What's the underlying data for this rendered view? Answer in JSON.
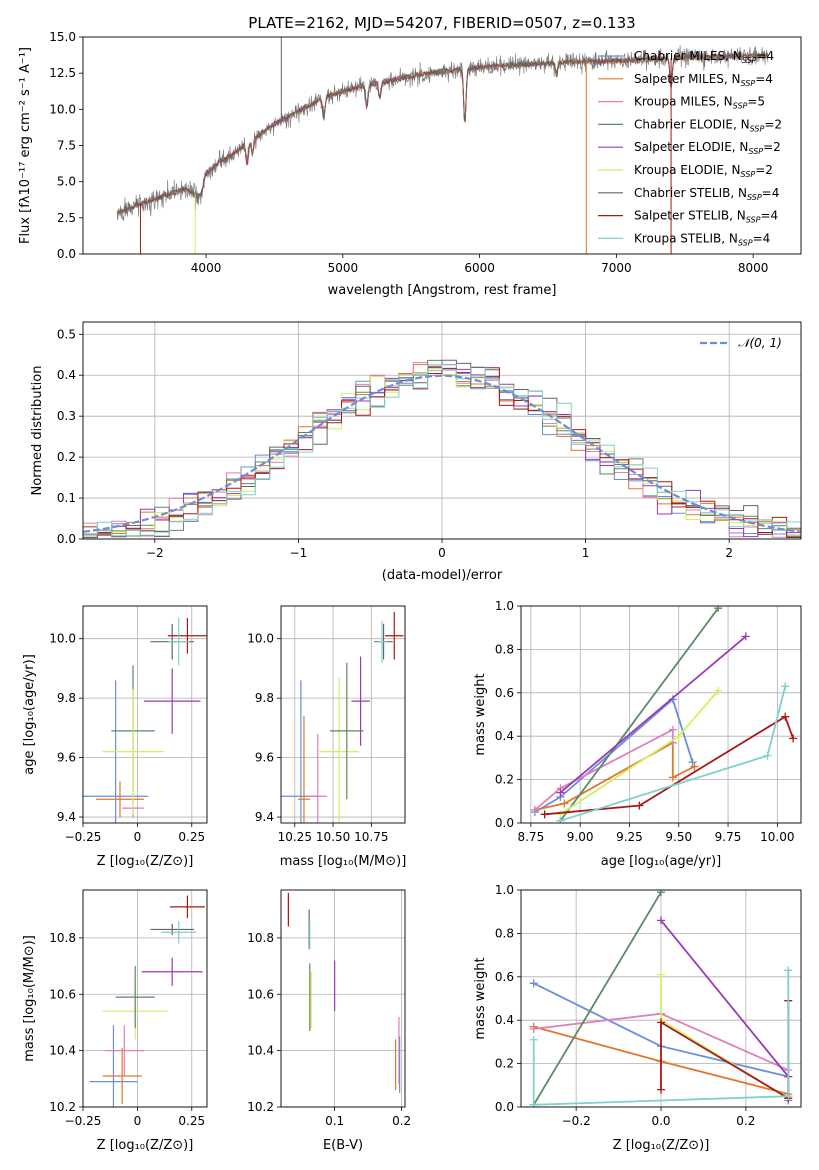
{
  "colors": {
    "cornflower": "#6A8FD8",
    "orange": "#E0782A",
    "pink": "#E07FB8",
    "green": "#5B8A66",
    "purple": "#9A3AB8",
    "lime": "#D4EE64",
    "gray": "#666666",
    "darkred": "#A81818",
    "cyan": "#7FD0CE"
  },
  "chart_data": [
    {
      "id": "spectrum",
      "type": "line",
      "title": "PLATE=2162, MJD=54207, FIBERID=0507, z=0.133",
      "xlabel": "wavelength [Angstrom, rest frame]",
      "ylabel": "Flux [fλ10⁻¹⁷ erg cm⁻² s⁻¹ A⁻¹]",
      "xlim": [
        3100,
        8350
      ],
      "ylim": [
        0,
        15
      ],
      "xticks": [
        4000,
        5000,
        6000,
        7000,
        8000
      ],
      "yticks": [
        0.0,
        2.5,
        5.0,
        7.5,
        10.0,
        12.5,
        15.0
      ],
      "grid": false,
      "legend_position": "right",
      "legend": [
        {
          "label": "Chabrier MILES, N",
          "sub": "SSP",
          "suffix": "=4",
          "color": "#6A8FD8"
        },
        {
          "label": "Salpeter MILES, N",
          "sub": "SSP",
          "suffix": "=4",
          "color": "#E0782A"
        },
        {
          "label": "Kroupa MILES, N",
          "sub": "SSP",
          "suffix": "=5",
          "color": "#E07FB8"
        },
        {
          "label": "Chabrier ELODIE, N",
          "sub": "SSP",
          "suffix": "=2",
          "color": "#5B8A66"
        },
        {
          "label": "Salpeter ELODIE, N",
          "sub": "SSP",
          "suffix": "=2",
          "color": "#9A3AB8"
        },
        {
          "label": "Kroupa ELODIE, N",
          "sub": "SSP",
          "suffix": "=2",
          "color": "#D4EE64"
        },
        {
          "label": "Chabrier STELIB, N",
          "sub": "SSP",
          "suffix": "=4",
          "color": "#666666"
        },
        {
          "label": "Salpeter STELIB, N",
          "sub": "SSP",
          "suffix": "=4",
          "color": "#A81818"
        },
        {
          "label": "Kroupa STELIB, N",
          "sub": "SSP",
          "suffix": "=4",
          "color": "#7FD0CE"
        }
      ],
      "continuum": [
        [
          3350,
          2.8
        ],
        [
          3500,
          3.4
        ],
        [
          3650,
          3.9
        ],
        [
          3750,
          4.2
        ],
        [
          3850,
          4.5
        ],
        [
          3950,
          4.0
        ],
        [
          4000,
          5.6
        ],
        [
          4100,
          6.3
        ],
        [
          4300,
          7.6
        ],
        [
          4500,
          9.0
        ],
        [
          4700,
          10.0
        ],
        [
          4900,
          11.0
        ],
        [
          5100,
          11.5
        ],
        [
          5300,
          11.9
        ],
        [
          5500,
          12.3
        ],
        [
          5700,
          12.6
        ],
        [
          5900,
          12.8
        ],
        [
          6100,
          13.0
        ],
        [
          6300,
          13.1
        ],
        [
          6500,
          13.2
        ],
        [
          6700,
          13.3
        ],
        [
          6900,
          13.3
        ],
        [
          7100,
          13.4
        ],
        [
          7300,
          13.5
        ],
        [
          7500,
          13.6
        ],
        [
          7700,
          13.6
        ],
        [
          7900,
          13.7
        ],
        [
          8100,
          13.7
        ]
      ],
      "absorption_features": [
        [
          3934,
          4.0
        ],
        [
          3969,
          4.3
        ],
        [
          4101,
          6.5
        ],
        [
          4300,
          6.2
        ],
        [
          4340,
          7.0
        ],
        [
          4861,
          9.4
        ],
        [
          5175,
          10.2
        ],
        [
          5270,
          10.8
        ],
        [
          5892,
          9.0
        ],
        [
          6563,
          12.4
        ],
        [
          7400,
          11.5
        ]
      ],
      "spikes": [
        [
          3520,
          0
        ],
        [
          3920,
          0
        ],
        [
          4550,
          15
        ],
        [
          6780,
          0
        ],
        [
          7400,
          0
        ]
      ]
    },
    {
      "id": "residuals",
      "type": "bar",
      "xlabel": "(data-model)/error",
      "ylabel": "Normed distribution",
      "xlim": [
        -2.5,
        2.5
      ],
      "ylim": [
        0,
        0.53
      ],
      "xticks": [
        -2,
        -1,
        0,
        1,
        2
      ],
      "yticks": [
        0.0,
        0.1,
        0.2,
        0.3,
        0.4,
        0.5
      ],
      "grid": true,
      "legend_position": "top-right",
      "reference_curve": {
        "label": "𝒩(0, 1)",
        "mean": 0,
        "sigma": 1,
        "color": "#6A8FD8"
      },
      "bin_width": 0.1,
      "bin_start": -2.5
    },
    {
      "id": "age_vs_Z",
      "type": "scatter",
      "xlabel": "Z [log₁₀(Z/Z⊙)]",
      "ylabel": "age  [log₁₀(age/yr)]",
      "xlim": [
        -0.25,
        0.32
      ],
      "ylim": [
        9.38,
        10.11
      ],
      "xticks": [
        -0.25,
        0.0,
        0.25
      ],
      "yticks": [
        9.4,
        9.6,
        9.8,
        10.0
      ],
      "grid": true,
      "points": [
        {
          "color": "#6A8FD8",
          "x": -0.1,
          "xerr": 0.15,
          "y": 9.47,
          "yerr": 0.39
        },
        {
          "color": "#E0782A",
          "x": -0.08,
          "xerr": 0.11,
          "y": 9.46,
          "yerr": 0.06
        },
        {
          "color": "#E07FB8",
          "x": -0.02,
          "xerr": 0.05,
          "y": 9.43,
          "yerr": 0.03
        },
        {
          "color": "#5B8A66",
          "x": -0.02,
          "xerr": 0.1,
          "y": 9.69,
          "yerr": 0.22
        },
        {
          "color": "#D4EE64",
          "x": -0.02,
          "xerr": 0.14,
          "y": 9.62,
          "yerr": 0.21
        },
        {
          "color": "#9A3AB8",
          "x": 0.16,
          "xerr": 0.13,
          "y": 9.79,
          "yerr": 0.11
        },
        {
          "color": "#666666",
          "x": 0.16,
          "xerr": 0.1,
          "y": 9.99,
          "yerr": 0.06
        },
        {
          "color": "#A81818",
          "x": 0.23,
          "xerr": 0.09,
          "y": 10.01,
          "yerr": 0.06
        },
        {
          "color": "#7FD0CE",
          "x": 0.19,
          "xerr": 0.05,
          "y": 9.99,
          "yerr": 0.08
        }
      ]
    },
    {
      "id": "age_vs_mass",
      "type": "scatter",
      "xlabel": "mass [log₁₀(M/M⊙)]",
      "ylabel": "",
      "xlim": [
        10.16,
        10.97
      ],
      "ylim": [
        9.38,
        10.11
      ],
      "xticks": [
        10.25,
        10.5,
        10.75
      ],
      "xtick_labels": [
        "10.25",
        "10.50",
        "10.75"
      ],
      "yticks": [
        9.4,
        9.6,
        9.8,
        10.0
      ],
      "grid": true,
      "points": [
        {
          "color": "#6A8FD8",
          "x": 10.29,
          "xerr": 0.13,
          "y": 9.47,
          "yerr": 0.39
        },
        {
          "color": "#E0782A",
          "x": 10.31,
          "xerr": 0.04,
          "y": 9.46,
          "yerr": 0.28
        },
        {
          "color": "#E07FB8",
          "x": 10.4,
          "xerr": 0.06,
          "y": 9.47,
          "yerr": 0.21
        },
        {
          "color": "#D4EE64",
          "x": 10.54,
          "xerr": 0.13,
          "y": 9.62,
          "yerr": 0.25
        },
        {
          "color": "#5B8A66",
          "x": 10.59,
          "xerr": 0.11,
          "y": 9.69,
          "yerr": 0.23
        },
        {
          "color": "#9A3AB8",
          "x": 10.68,
          "xerr": 0.06,
          "y": 9.79,
          "yerr": 0.15
        },
        {
          "color": "#666666",
          "x": 10.83,
          "xerr": 0.06,
          "y": 9.99,
          "yerr": 0.06
        },
        {
          "color": "#A81818",
          "x": 10.9,
          "xerr": 0.06,
          "y": 10.01,
          "yerr": 0.08
        },
        {
          "color": "#7FD0CE",
          "x": 10.82,
          "xerr": 0.03,
          "y": 9.99,
          "yerr": 0.07
        }
      ]
    },
    {
      "id": "massweight_vs_age",
      "type": "line",
      "xlabel": "age  [log₁₀(age/yr)]",
      "ylabel": "mass weight",
      "xlim": [
        8.7,
        10.12
      ],
      "ylim": [
        0,
        1
      ],
      "xticks": [
        8.75,
        9.0,
        9.25,
        9.5,
        9.75,
        10.0
      ],
      "xtick_labels": [
        "8.75",
        "9.00",
        "9.25",
        "9.50",
        "9.75",
        "10.00"
      ],
      "yticks": [
        0.0,
        0.2,
        0.4,
        0.6,
        0.8,
        1.0
      ],
      "grid": true,
      "series": [
        {
          "color": "#6A8FD8",
          "points": [
            [
              8.77,
              0.05
            ],
            [
              8.9,
              0.12
            ],
            [
              9.47,
              0.57
            ],
            [
              9.57,
              0.28
            ]
          ]
        },
        {
          "color": "#E0782A",
          "points": [
            [
              8.77,
              0.06
            ],
            [
              8.92,
              0.09
            ],
            [
              9.47,
              0.37
            ],
            [
              9.47,
              0.21
            ],
            [
              9.58,
              0.26
            ]
          ]
        },
        {
          "color": "#E07FB8",
          "points": [
            [
              8.77,
              0.06
            ],
            [
              8.9,
              0.16
            ],
            [
              9.47,
              0.43
            ],
            [
              9.47,
              0.37
            ]
          ]
        },
        {
          "color": "#5B8A66",
          "points": [
            [
              8.9,
              0.01
            ],
            [
              9.7,
              0.99
            ]
          ]
        },
        {
          "color": "#9A3AB8",
          "points": [
            [
              8.9,
              0.14
            ],
            [
              9.84,
              0.86
            ]
          ]
        },
        {
          "color": "#D4EE64",
          "points": [
            [
              8.9,
              0.04
            ],
            [
              9.5,
              0.4
            ],
            [
              9.7,
              0.61
            ]
          ]
        },
        {
          "color": "#A81818",
          "points": [
            [
              8.82,
              0.04
            ],
            [
              9.3,
              0.08
            ],
            [
              10.04,
              0.49
            ],
            [
              10.08,
              0.39
            ]
          ]
        },
        {
          "color": "#7FD0CE",
          "points": [
            [
              8.9,
              0.01
            ],
            [
              9.95,
              0.31
            ],
            [
              10.04,
              0.63
            ]
          ]
        }
      ]
    },
    {
      "id": "mass_vs_Z",
      "type": "scatter",
      "xlabel": "Z [log₁₀(Z/Z⊙)]",
      "ylabel": "mass [log₁₀(M/M⊙)]",
      "xlim": [
        -0.25,
        0.32
      ],
      "ylim": [
        10.2,
        10.97
      ],
      "xticks": [
        -0.25,
        0.0,
        0.25
      ],
      "yticks": [
        10.2,
        10.4,
        10.6,
        10.8
      ],
      "grid": true,
      "points": [
        {
          "color": "#6A8FD8",
          "x": -0.11,
          "xerr": 0.11,
          "y": 10.29,
          "yerr": 0.2
        },
        {
          "color": "#E0782A",
          "x": -0.07,
          "xerr": 0.09,
          "y": 10.31,
          "yerr": 0.1
        },
        {
          "color": "#E07FB8",
          "x": -0.06,
          "xerr": 0.09,
          "y": 10.4,
          "yerr": 0.09
        },
        {
          "color": "#D4EE64",
          "x": -0.01,
          "xerr": 0.15,
          "y": 10.54,
          "yerr": 0.1
        },
        {
          "color": "#5B8A66",
          "x": -0.01,
          "xerr": 0.09,
          "y": 10.59,
          "yerr": 0.11
        },
        {
          "color": "#9A3AB8",
          "x": 0.16,
          "xerr": 0.14,
          "y": 10.68,
          "yerr": 0.05
        },
        {
          "color": "#666666",
          "x": 0.16,
          "xerr": 0.1,
          "y": 10.83,
          "yerr": 0.02
        },
        {
          "color": "#A81818",
          "x": 0.23,
          "xerr": 0.08,
          "y": 10.91,
          "yerr": 0.04
        },
        {
          "color": "#7FD0CE",
          "x": 0.19,
          "xerr": 0.08,
          "y": 10.82,
          "yerr": 0.04
        }
      ]
    },
    {
      "id": "mass_vs_ebv",
      "type": "scatter",
      "xlabel": "E(B-V)",
      "ylabel": "",
      "xlim": [
        0.02,
        0.205
      ],
      "ylim": [
        10.2,
        10.97
      ],
      "xticks": [
        0.1,
        0.2
      ],
      "yticks": [
        10.2,
        10.4,
        10.6,
        10.8
      ],
      "grid": true,
      "points": [
        {
          "color": "#A81818",
          "x": 0.031,
          "xerr": 0,
          "y": 10.9,
          "yerr": 0.06
        },
        {
          "color": "#666666",
          "x": 0.062,
          "xerr": 0,
          "y": 10.83,
          "yerr": 0.07
        },
        {
          "color": "#7FD0CE",
          "x": 0.063,
          "xerr": 0,
          "y": 10.81,
          "yerr": 0.05
        },
        {
          "color": "#5B8A66",
          "x": 0.063,
          "xerr": 0,
          "y": 10.59,
          "yerr": 0.12
        },
        {
          "color": "#D4EE64",
          "x": 0.065,
          "xerr": 0,
          "y": 10.58,
          "yerr": 0.1
        },
        {
          "color": "#9A3AB8",
          "x": 0.1,
          "xerr": 0,
          "y": 10.63,
          "yerr": 0.09
        },
        {
          "color": "#E0782A",
          "x": 0.191,
          "xerr": 0,
          "y": 10.35,
          "yerr": 0.09
        },
        {
          "color": "#E07FB8",
          "x": 0.196,
          "xerr": 0,
          "y": 10.4,
          "yerr": 0.12
        },
        {
          "color": "#6A8FD8",
          "x": 0.197,
          "xerr": 0,
          "y": 10.35,
          "yerr": 0.1
        }
      ]
    },
    {
      "id": "massweight_vs_Z",
      "type": "line",
      "xlabel": "Z [log₁₀(Z/Z⊙)]",
      "ylabel": "mass weight",
      "xlim": [
        -0.33,
        0.33
      ],
      "ylim": [
        0,
        1
      ],
      "xticks": [
        -0.2,
        0.0,
        0.2
      ],
      "xtick_labels": [
        "−0.2",
        "0.0",
        "0.2"
      ],
      "yticks": [
        0.0,
        0.2,
        0.4,
        0.6,
        0.8,
        1.0
      ],
      "grid": true,
      "series": [
        {
          "color": "#6A8FD8",
          "points": [
            [
              -0.3,
              0.57
            ],
            [
              0.0,
              0.28
            ],
            [
              0.3,
              0.14
            ],
            [
              0.3,
              0.03
            ]
          ]
        },
        {
          "color": "#E0782A",
          "points": [
            [
              -0.3,
              0.37
            ],
            [
              0.0,
              0.21
            ],
            [
              0.3,
              0.06
            ]
          ]
        },
        {
          "color": "#E07FB8",
          "points": [
            [
              -0.3,
              0.36
            ],
            [
              0.0,
              0.43
            ],
            [
              0.3,
              0.17
            ]
          ]
        },
        {
          "color": "#5B8A66",
          "points": [
            [
              -0.3,
              0.01
            ],
            [
              0.0,
              0.99
            ]
          ]
        },
        {
          "color": "#9A3AB8",
          "points": [
            [
              0.0,
              0.86
            ],
            [
              0.3,
              0.14
            ]
          ]
        },
        {
          "color": "#D4EE64",
          "points": [
            [
              0.0,
              0.61
            ],
            [
              0.0,
              0.4
            ],
            [
              0.3,
              0.04
            ]
          ]
        },
        {
          "color": "#A81818",
          "points": [
            [
              0.0,
              0.08
            ],
            [
              0.0,
              0.39
            ],
            [
              0.3,
              0.04
            ],
            [
              0.3,
              0.49
            ]
          ]
        },
        {
          "color": "#7FD0CE",
          "points": [
            [
              -0.3,
              0.31
            ],
            [
              -0.3,
              0.01
            ],
            [
              0.3,
              0.05
            ],
            [
              0.3,
              0.63
            ]
          ]
        }
      ]
    }
  ]
}
